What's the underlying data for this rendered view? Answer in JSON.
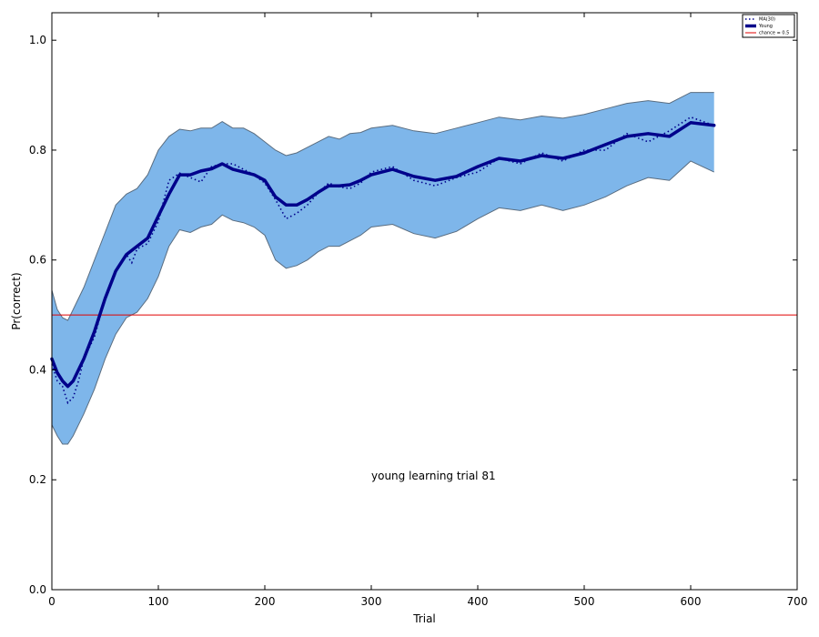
{
  "chart_data": {
    "type": "line",
    "xlabel": "Trial",
    "ylabel": "Pr(correct)",
    "xlim": [
      0,
      700
    ],
    "ylim": [
      0,
      1.05
    ],
    "x_ticks": [
      "0",
      "100",
      "200",
      "300",
      "400",
      "500",
      "600",
      "700"
    ],
    "x_tick_values": [
      0,
      100,
      200,
      300,
      400,
      500,
      600,
      700
    ],
    "y_ticks": [
      "0.0",
      "0.2",
      "0.4",
      "0.6",
      "0.8",
      "1.0"
    ],
    "y_tick_values": [
      0,
      0.2,
      0.4,
      0.6,
      0.8,
      1.0
    ],
    "annotation": {
      "text": "young learning trial  81",
      "x": 300,
      "y": 0.2
    },
    "legend": {
      "placement": "top-right",
      "entries": [
        "MA(30)",
        "Young",
        "chance = 0.5"
      ]
    },
    "colors": {
      "band_fill": "#7eb6ea",
      "band_edge": "#5a6d80",
      "main_line": "#00008b",
      "ma_line": "#00008b",
      "chance_line": "#e00000"
    },
    "chance_level": 0.5,
    "series": [
      {
        "name": "Young",
        "style": "solid-thick",
        "x": [
          0,
          5,
          10,
          15,
          20,
          30,
          40,
          50,
          60,
          70,
          80,
          90,
          100,
          110,
          120,
          130,
          140,
          150,
          160,
          170,
          180,
          190,
          200,
          210,
          220,
          230,
          240,
          250,
          260,
          270,
          280,
          290,
          300,
          320,
          340,
          360,
          380,
          400,
          420,
          440,
          460,
          480,
          500,
          520,
          540,
          560,
          580,
          600,
          622
        ],
        "y": [
          0.42,
          0.395,
          0.38,
          0.37,
          0.38,
          0.42,
          0.47,
          0.53,
          0.58,
          0.61,
          0.625,
          0.64,
          0.68,
          0.72,
          0.755,
          0.755,
          0.762,
          0.766,
          0.775,
          0.765,
          0.76,
          0.755,
          0.745,
          0.715,
          0.7,
          0.7,
          0.71,
          0.723,
          0.735,
          0.735,
          0.737,
          0.745,
          0.755,
          0.765,
          0.752,
          0.745,
          0.752,
          0.77,
          0.785,
          0.78,
          0.79,
          0.785,
          0.795,
          0.81,
          0.825,
          0.83,
          0.825,
          0.85,
          0.845
        ]
      },
      {
        "name": "MA(30)",
        "style": "dotted",
        "x": [
          0,
          5,
          10,
          15,
          20,
          25,
          30,
          40,
          50,
          60,
          70,
          75,
          80,
          90,
          100,
          110,
          120,
          130,
          140,
          150,
          160,
          170,
          180,
          190,
          200,
          210,
          220,
          230,
          240,
          250,
          260,
          270,
          280,
          290,
          300,
          320,
          340,
          360,
          380,
          400,
          420,
          440,
          460,
          480,
          500,
          520,
          540,
          560,
          580,
          600,
          622
        ],
        "y": [
          0.41,
          0.38,
          0.37,
          0.34,
          0.35,
          0.38,
          0.42,
          0.46,
          0.53,
          0.58,
          0.61,
          0.595,
          0.62,
          0.63,
          0.67,
          0.745,
          0.758,
          0.75,
          0.742,
          0.77,
          0.775,
          0.775,
          0.765,
          0.755,
          0.74,
          0.71,
          0.675,
          0.685,
          0.7,
          0.722,
          0.74,
          0.733,
          0.73,
          0.74,
          0.76,
          0.77,
          0.745,
          0.735,
          0.75,
          0.76,
          0.785,
          0.775,
          0.795,
          0.78,
          0.8,
          0.8,
          0.83,
          0.815,
          0.835,
          0.86,
          0.845
        ]
      },
      {
        "name": "band_upper",
        "style": "band",
        "x": [
          0,
          5,
          10,
          15,
          20,
          30,
          40,
          50,
          60,
          70,
          80,
          90,
          100,
          110,
          120,
          130,
          140,
          150,
          160,
          170,
          180,
          190,
          200,
          210,
          220,
          230,
          240,
          250,
          260,
          270,
          280,
          290,
          300,
          320,
          340,
          360,
          380,
          400,
          420,
          440,
          460,
          480,
          500,
          520,
          540,
          560,
          580,
          600,
          622
        ],
        "y": [
          0.545,
          0.51,
          0.495,
          0.49,
          0.51,
          0.55,
          0.6,
          0.65,
          0.7,
          0.72,
          0.73,
          0.755,
          0.8,
          0.825,
          0.838,
          0.835,
          0.84,
          0.84,
          0.852,
          0.84,
          0.84,
          0.83,
          0.815,
          0.8,
          0.79,
          0.795,
          0.805,
          0.815,
          0.825,
          0.82,
          0.83,
          0.832,
          0.84,
          0.845,
          0.835,
          0.83,
          0.84,
          0.85,
          0.86,
          0.855,
          0.862,
          0.858,
          0.865,
          0.875,
          0.885,
          0.89,
          0.885,
          0.905,
          0.905
        ]
      },
      {
        "name": "band_lower",
        "style": "band",
        "x": [
          0,
          5,
          10,
          15,
          20,
          30,
          40,
          50,
          60,
          70,
          80,
          90,
          100,
          110,
          120,
          130,
          140,
          150,
          160,
          170,
          180,
          190,
          200,
          210,
          220,
          230,
          240,
          250,
          260,
          270,
          280,
          290,
          300,
          320,
          340,
          360,
          380,
          400,
          420,
          440,
          460,
          480,
          500,
          520,
          540,
          560,
          580,
          600,
          622
        ],
        "y": [
          0.3,
          0.28,
          0.265,
          0.265,
          0.28,
          0.32,
          0.365,
          0.42,
          0.465,
          0.495,
          0.505,
          0.53,
          0.57,
          0.625,
          0.655,
          0.65,
          0.66,
          0.665,
          0.682,
          0.672,
          0.668,
          0.66,
          0.645,
          0.6,
          0.585,
          0.59,
          0.6,
          0.615,
          0.625,
          0.625,
          0.635,
          0.645,
          0.66,
          0.665,
          0.648,
          0.64,
          0.652,
          0.675,
          0.695,
          0.69,
          0.7,
          0.69,
          0.7,
          0.715,
          0.735,
          0.75,
          0.745,
          0.78,
          0.76
        ]
      }
    ]
  }
}
